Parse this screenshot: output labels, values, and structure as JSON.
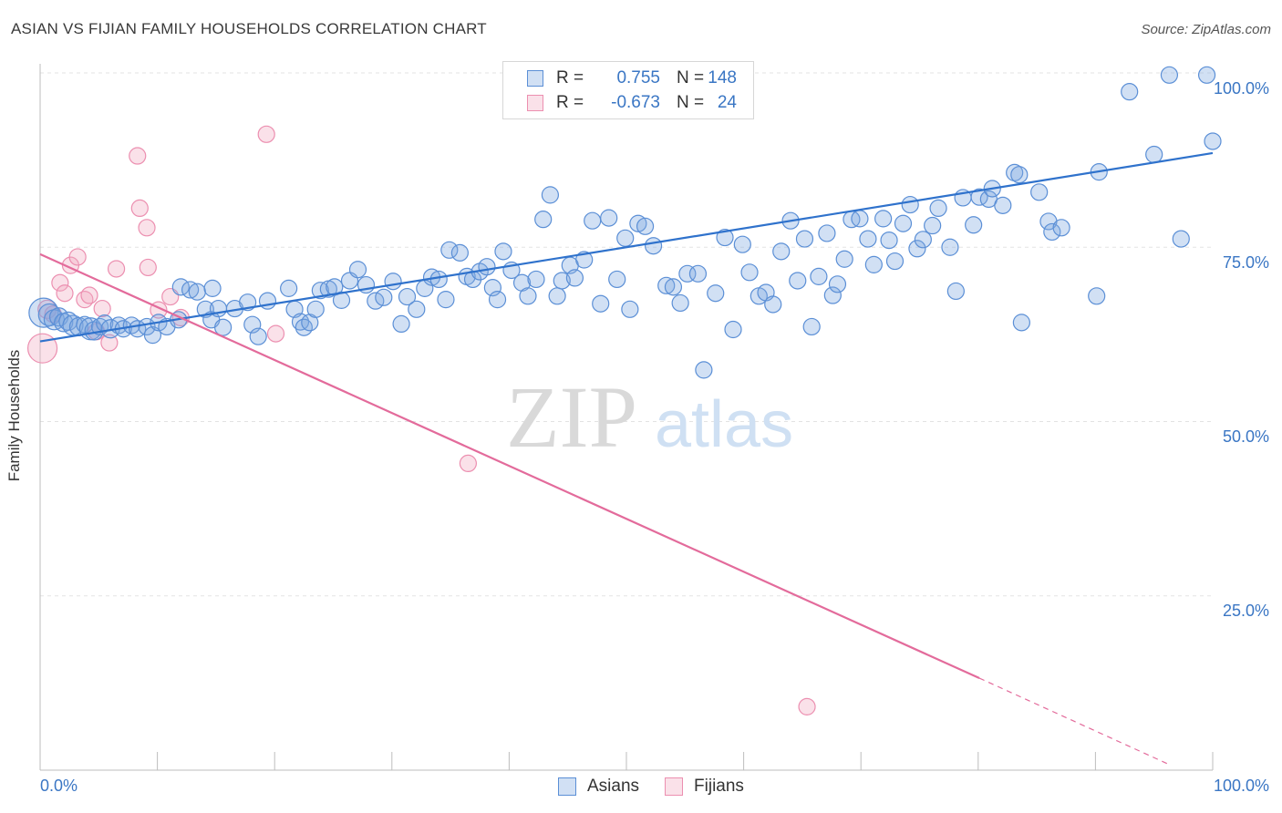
{
  "header": {
    "title": "ASIAN VS FIJIAN FAMILY HOUSEHOLDS CORRELATION CHART",
    "source": "Source: ZipAtlas.com"
  },
  "watermark": {
    "zip": "ZIP",
    "atlas": "atlas"
  },
  "legend_top": {
    "rows": [
      {
        "r_label": "R =",
        "r_value": "0.755",
        "n_label": "N =",
        "n_value": "148",
        "color": "#7aa7e0"
      },
      {
        "r_label": "R =",
        "r_value": "-0.673",
        "n_label": "N =",
        "n_value": "24",
        "color": "#f2a8c0"
      }
    ]
  },
  "legend_bottom": {
    "items": [
      {
        "label": "Asians",
        "color": "#7aa7e0"
      },
      {
        "label": "Fijians",
        "color": "#f2a8c0"
      }
    ]
  },
  "axes": {
    "ylabel": "Family Households",
    "x_min_label": "0.0%",
    "x_max_label": "100.0%",
    "y_tick_labels": [
      "100.0%",
      "75.0%",
      "50.0%",
      "25.0%"
    ]
  },
  "colors": {
    "asian_fill": "rgba(122,167,224,0.35)",
    "asian_stroke": "#5b8fd6",
    "asian_line": "#2f72cc",
    "fijian_fill": "rgba(242,168,192,0.35)",
    "fijian_stroke": "#ec8fb0",
    "fijian_line": "#e36b9b",
    "grid": "#e3e3e3",
    "tick_text": "#3a76c4"
  },
  "chart_data": {
    "type": "scatter",
    "title": "ASIAN VS FIJIAN FAMILY HOUSEHOLDS CORRELATION CHART",
    "xlabel": "",
    "ylabel": "Family Households",
    "xlim": [
      0,
      100
    ],
    "ylim": [
      0,
      102
    ],
    "y_ticks": [
      25,
      50,
      75,
      100
    ],
    "grid": true,
    "legend_position": "bottom",
    "series": [
      {
        "name": "Asians",
        "r": 0.755,
        "n": 148,
        "trendline": [
          [
            0,
            61.5
          ],
          [
            100,
            88.5
          ]
        ],
        "points": [
          [
            0.3,
            65.6,
            16
          ],
          [
            0.8,
            65.3,
            12
          ],
          [
            1.2,
            64.6,
            11
          ],
          [
            1.6,
            65.0,
            10
          ],
          [
            2.0,
            64.2,
            10
          ],
          [
            2.4,
            64.4,
            10
          ],
          [
            2.8,
            63.8,
            11
          ],
          [
            3.3,
            63.6,
            10
          ],
          [
            3.8,
            63.9,
            9
          ],
          [
            4.3,
            63.3,
            12
          ],
          [
            4.6,
            63.0,
            10
          ],
          [
            5.1,
            63.6,
            9
          ],
          [
            5.5,
            64.1,
            9
          ],
          [
            6.0,
            63.3,
            10
          ],
          [
            6.7,
            63.8,
            9
          ],
          [
            7.1,
            63.3,
            9
          ],
          [
            7.8,
            63.8,
            9
          ],
          [
            8.3,
            63.3,
            9
          ],
          [
            9.1,
            63.6,
            9
          ],
          [
            9.6,
            62.4,
            9
          ],
          [
            10.1,
            64.2,
            9
          ],
          [
            10.8,
            63.6,
            9
          ],
          [
            11.8,
            64.6,
            9
          ],
          [
            12.0,
            69.3,
            9
          ],
          [
            12.8,
            68.9,
            9
          ],
          [
            13.4,
            68.6,
            9
          ],
          [
            14.1,
            66.1,
            9
          ],
          [
            14.6,
            64.6,
            9
          ],
          [
            14.7,
            69.1,
            9
          ],
          [
            15.2,
            66.2,
            9
          ],
          [
            15.6,
            63.5,
            9
          ],
          [
            16.6,
            66.2,
            9
          ],
          [
            17.7,
            67.1,
            9
          ],
          [
            18.1,
            63.9,
            9
          ],
          [
            18.6,
            62.2,
            9
          ],
          [
            19.4,
            67.3,
            9
          ],
          [
            21.2,
            69.1,
            9
          ],
          [
            21.7,
            66.1,
            9
          ],
          [
            22.2,
            64.3,
            9
          ],
          [
            22.5,
            63.5,
            9
          ],
          [
            23.0,
            64.2,
            9
          ],
          [
            23.5,
            66.1,
            9
          ],
          [
            23.9,
            68.8,
            9
          ],
          [
            24.6,
            69.0,
            9
          ],
          [
            25.1,
            69.3,
            9
          ],
          [
            25.7,
            67.4,
            9
          ],
          [
            26.4,
            70.2,
            9
          ],
          [
            27.1,
            71.8,
            9
          ],
          [
            27.8,
            69.6,
            9
          ],
          [
            28.6,
            67.3,
            9
          ],
          [
            29.3,
            67.8,
            9
          ],
          [
            30.1,
            70.1,
            9
          ],
          [
            30.8,
            64.0,
            9
          ],
          [
            31.3,
            67.9,
            9
          ],
          [
            32.1,
            66.1,
            9
          ],
          [
            32.8,
            69.1,
            9
          ],
          [
            33.4,
            70.7,
            9
          ],
          [
            34.0,
            70.4,
            9
          ],
          [
            34.6,
            67.5,
            9
          ],
          [
            34.9,
            74.6,
            9
          ],
          [
            35.8,
            74.2,
            9
          ],
          [
            36.4,
            70.8,
            9
          ],
          [
            36.9,
            70.4,
            9
          ],
          [
            37.5,
            71.5,
            9
          ],
          [
            38.1,
            72.2,
            9
          ],
          [
            38.6,
            69.2,
            9
          ],
          [
            39.0,
            67.5,
            9
          ],
          [
            39.5,
            74.4,
            9
          ],
          [
            40.2,
            71.7,
            9
          ],
          [
            41.1,
            69.9,
            9
          ],
          [
            41.6,
            68.0,
            9
          ],
          [
            42.3,
            70.4,
            9
          ],
          [
            42.9,
            79.0,
            9
          ],
          [
            43.5,
            82.5,
            9
          ],
          [
            44.1,
            68.0,
            9
          ],
          [
            44.5,
            70.2,
            9
          ],
          [
            45.2,
            72.4,
            9
          ],
          [
            45.6,
            70.6,
            9
          ],
          [
            46.4,
            73.2,
            9
          ],
          [
            47.1,
            78.8,
            9
          ],
          [
            47.8,
            66.9,
            9
          ],
          [
            48.5,
            79.2,
            9
          ],
          [
            49.2,
            70.4,
            9
          ],
          [
            49.9,
            76.3,
            9
          ],
          [
            50.3,
            66.1,
            9
          ],
          [
            51.0,
            78.4,
            9
          ],
          [
            51.6,
            78.0,
            9
          ],
          [
            52.3,
            75.2,
            9
          ],
          [
            53.4,
            69.5,
            9
          ],
          [
            54.0,
            69.3,
            9
          ],
          [
            54.6,
            67.0,
            9
          ],
          [
            55.2,
            71.2,
            9
          ],
          [
            56.1,
            71.2,
            9
          ],
          [
            56.6,
            57.4,
            9
          ],
          [
            57.6,
            68.4,
            9
          ],
          [
            58.4,
            76.4,
            9
          ],
          [
            59.1,
            63.2,
            9
          ],
          [
            59.9,
            75.4,
            9
          ],
          [
            60.5,
            71.4,
            9
          ],
          [
            61.3,
            68.0,
            9
          ],
          [
            61.9,
            68.5,
            9
          ],
          [
            62.5,
            66.8,
            9
          ],
          [
            63.2,
            74.4,
            9
          ],
          [
            64.0,
            78.8,
            9
          ],
          [
            64.6,
            70.2,
            9
          ],
          [
            65.2,
            76.2,
            9
          ],
          [
            65.8,
            63.6,
            9
          ],
          [
            66.4,
            70.8,
            9
          ],
          [
            67.1,
            77.0,
            9
          ],
          [
            67.6,
            68.1,
            9
          ],
          [
            68.0,
            69.7,
            9
          ],
          [
            68.6,
            73.3,
            9
          ],
          [
            69.2,
            79.0,
            9
          ],
          [
            69.9,
            79.1,
            9
          ],
          [
            70.6,
            76.2,
            9
          ],
          [
            71.1,
            72.5,
            9
          ],
          [
            71.9,
            79.1,
            9
          ],
          [
            72.4,
            76.0,
            9
          ],
          [
            72.9,
            73.0,
            9
          ],
          [
            73.6,
            78.4,
            9
          ],
          [
            74.2,
            81.1,
            9
          ],
          [
            74.8,
            74.8,
            9
          ],
          [
            75.3,
            76.1,
            9
          ],
          [
            76.1,
            78.1,
            9
          ],
          [
            76.6,
            80.6,
            9
          ],
          [
            77.6,
            75.0,
            9
          ],
          [
            78.1,
            68.7,
            9
          ],
          [
            78.7,
            82.1,
            9
          ],
          [
            79.6,
            78.2,
            9
          ],
          [
            80.1,
            82.2,
            9
          ],
          [
            80.9,
            81.9,
            9
          ],
          [
            81.2,
            83.4,
            9
          ],
          [
            82.1,
            81.0,
            9
          ],
          [
            83.1,
            85.7,
            9
          ],
          [
            83.5,
            85.4,
            9
          ],
          [
            83.7,
            64.2,
            9
          ],
          [
            85.2,
            82.9,
            9
          ],
          [
            86.0,
            78.7,
            9
          ],
          [
            86.3,
            77.2,
            9
          ],
          [
            87.1,
            77.8,
            9
          ],
          [
            90.1,
            68.0,
            9
          ],
          [
            90.3,
            85.8,
            9
          ],
          [
            92.9,
            97.3,
            9
          ],
          [
            95.0,
            88.3,
            9
          ],
          [
            96.3,
            99.7,
            9
          ],
          [
            97.3,
            76.2,
            9
          ],
          [
            99.5,
            99.7,
            9
          ],
          [
            100.0,
            90.2,
            9
          ]
        ]
      },
      {
        "name": "Fijians",
        "r": -0.673,
        "n": 24,
        "trendline": [
          [
            0,
            74.0
          ],
          [
            80.1,
            13.2
          ]
        ],
        "trendline_extension": [
          [
            80.1,
            13.2
          ],
          [
            96.3,
            0.8
          ]
        ],
        "points": [
          [
            0.2,
            60.5,
            16
          ],
          [
            0.6,
            66.1,
            10
          ],
          [
            1.1,
            65.4,
            9
          ],
          [
            1.7,
            69.9,
            9
          ],
          [
            2.1,
            68.4,
            9
          ],
          [
            2.6,
            72.4,
            9
          ],
          [
            3.2,
            73.6,
            9
          ],
          [
            3.8,
            67.5,
            9
          ],
          [
            4.2,
            68.1,
            9
          ],
          [
            4.8,
            62.9,
            9
          ],
          [
            5.3,
            66.2,
            9
          ],
          [
            5.9,
            61.3,
            9
          ],
          [
            6.5,
            71.9,
            9
          ],
          [
            8.3,
            88.1,
            9
          ],
          [
            8.5,
            80.6,
            9
          ],
          [
            9.1,
            77.8,
            9
          ],
          [
            9.2,
            72.1,
            9
          ],
          [
            10.1,
            66.0,
            9
          ],
          [
            11.1,
            67.9,
            9
          ],
          [
            12.0,
            64.9,
            9
          ],
          [
            19.3,
            91.2,
            9
          ],
          [
            20.1,
            62.6,
            9
          ],
          [
            36.5,
            44.0,
            9
          ],
          [
            65.4,
            9.1,
            9
          ]
        ]
      }
    ]
  }
}
